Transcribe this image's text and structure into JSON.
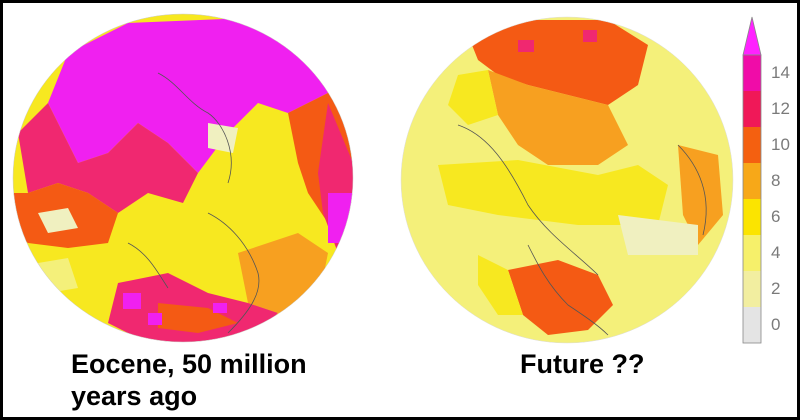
{
  "maps": [
    {
      "caption_line1": "Eocene, 50 million",
      "caption_line2": "years ago"
    },
    {
      "caption": "Future ??"
    }
  ],
  "legend": {
    "ticks": [
      "14",
      "12",
      "10",
      "8",
      "6",
      "4",
      "2",
      "0"
    ],
    "colors": [
      "#e4e4e4",
      "#f2eea0",
      "#f6f06a",
      "#fbe400",
      "#f7a818",
      "#f46010",
      "#f01858",
      "#f00ca8"
    ],
    "over_color": "#ff22ff"
  },
  "palette": {
    "magenta": "#f020f0",
    "pink": "#f02870",
    "red_orange": "#f45a14",
    "orange": "#f7a020",
    "yellow": "#f7e820",
    "pale_yellow": "#f4f07a",
    "light": "#f0f0c0",
    "coast": "#555555"
  }
}
